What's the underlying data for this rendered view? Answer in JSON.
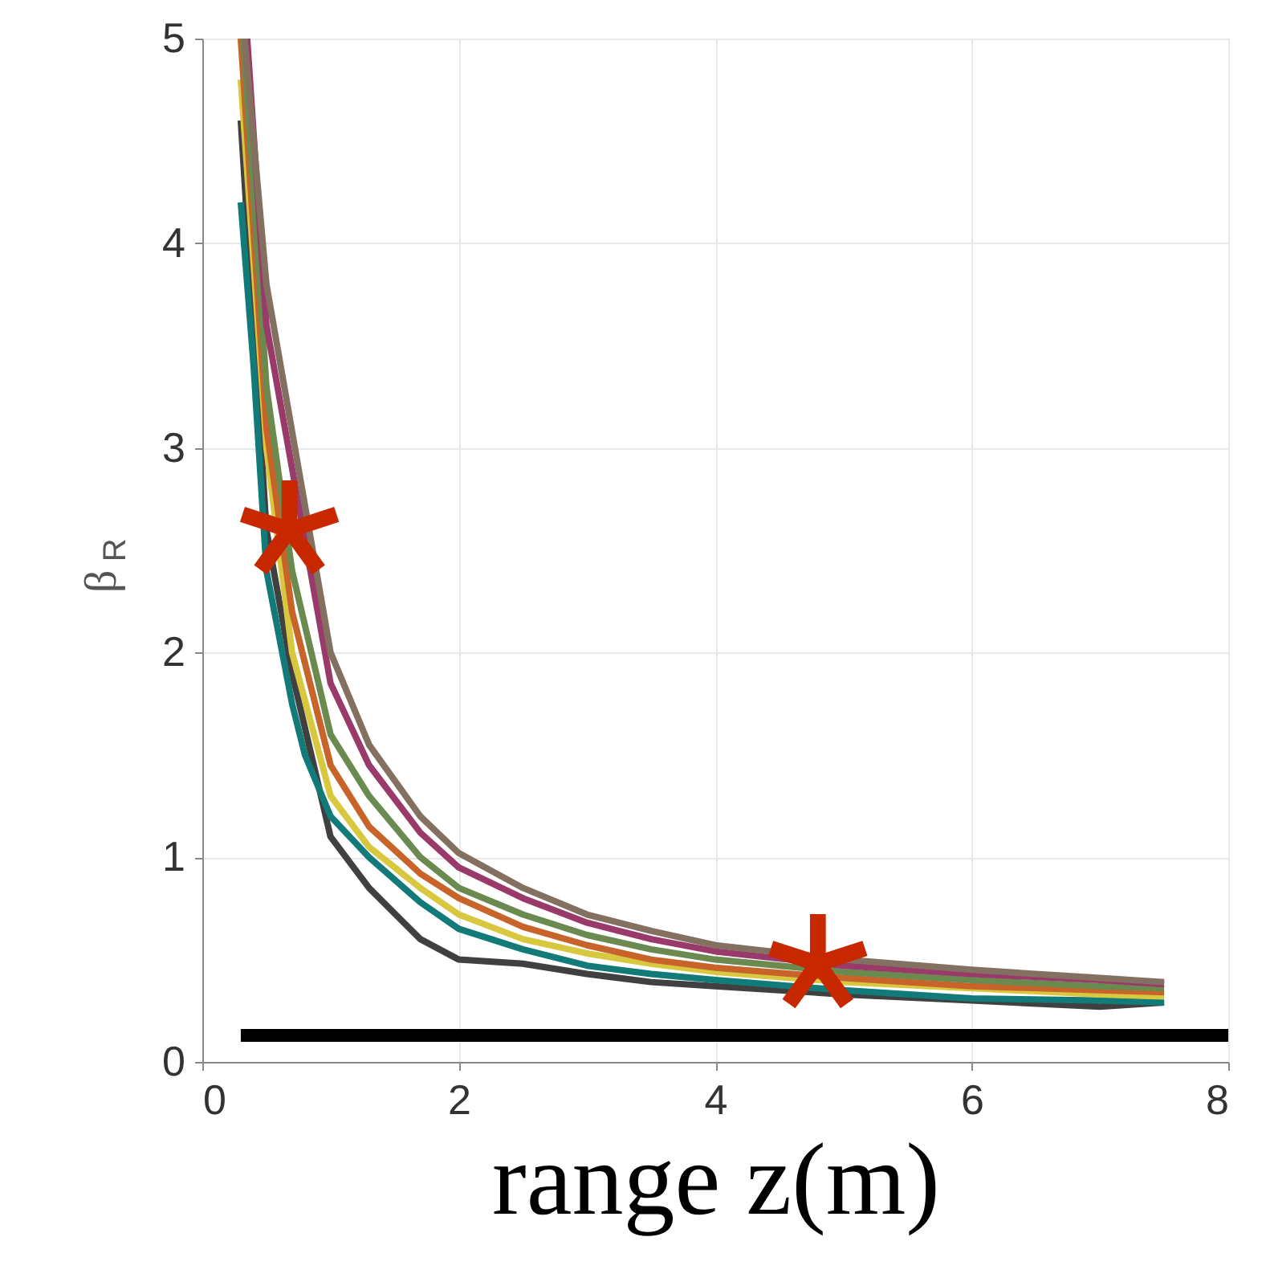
{
  "chart_data": {
    "type": "line",
    "xlabel": "range z(m)",
    "ylabel": "β$_{R}$",
    "xlim": [
      0,
      8
    ],
    "ylim": [
      0,
      5
    ],
    "xticks": [
      0,
      2,
      4,
      6,
      8
    ],
    "yticks": [
      0,
      1,
      2,
      3,
      4,
      5
    ],
    "grid": true,
    "line_style": "solid",
    "marker": "none",
    "series": [
      {
        "color": "#404040",
        "x": [
          0.3,
          0.5,
          0.7,
          1.0,
          1.3,
          1.7,
          2.0,
          2.5,
          3.0,
          3.5,
          4.0,
          5.0,
          6.0,
          7.0,
          7.5
        ],
        "values": [
          4.6,
          2.6,
          1.9,
          1.1,
          0.85,
          0.6,
          0.5,
          0.48,
          0.43,
          0.39,
          0.37,
          0.33,
          0.3,
          0.27,
          0.29
        ]
      },
      {
        "color": "#127a78",
        "x": [
          0.3,
          0.4,
          0.5,
          0.7,
          0.8,
          1.0,
          1.3,
          1.7,
          2.0,
          2.5,
          3.0,
          3.5,
          4.0,
          5.0,
          6.0,
          7.0,
          7.5
        ],
        "values": [
          4.2,
          3.4,
          2.4,
          1.75,
          1.5,
          1.2,
          1.0,
          0.78,
          0.65,
          0.55,
          0.47,
          0.43,
          0.4,
          0.35,
          0.31,
          0.3,
          0.29
        ]
      },
      {
        "color": "#d8c840",
        "x": [
          0.3,
          0.5,
          0.7,
          1.0,
          1.3,
          1.7,
          2.0,
          2.5,
          3.0,
          3.5,
          4.0,
          5.0,
          6.0,
          7.0,
          7.5
        ],
        "values": [
          4.8,
          3.0,
          2.0,
          1.3,
          1.05,
          0.85,
          0.72,
          0.6,
          0.53,
          0.48,
          0.44,
          0.39,
          0.36,
          0.33,
          0.32
        ]
      },
      {
        "color": "#c8642a",
        "x": [
          0.3,
          0.5,
          0.7,
          1.0,
          1.3,
          1.7,
          2.0,
          2.5,
          3.0,
          3.5,
          4.0,
          5.0,
          6.0,
          7.0,
          7.5
        ],
        "values": [
          5.0,
          3.1,
          2.2,
          1.45,
          1.15,
          0.92,
          0.8,
          0.66,
          0.57,
          0.5,
          0.46,
          0.41,
          0.37,
          0.35,
          0.34
        ]
      },
      {
        "color": "#6a8a50",
        "x": [
          0.32,
          0.5,
          0.7,
          1.0,
          1.3,
          1.7,
          2.0,
          2.5,
          3.0,
          3.5,
          4.0,
          5.0,
          6.0,
          7.0,
          7.5
        ],
        "values": [
          5.0,
          3.3,
          2.4,
          1.6,
          1.3,
          1.0,
          0.85,
          0.72,
          0.62,
          0.55,
          0.5,
          0.44,
          0.4,
          0.37,
          0.36
        ]
      },
      {
        "color": "#9a3a6a",
        "x": [
          0.35,
          0.5,
          1.0,
          1.3,
          1.7,
          2.0,
          2.5,
          3.0,
          3.5,
          4.0,
          5.0,
          6.0,
          7.0,
          7.5
        ],
        "values": [
          5.0,
          3.6,
          1.85,
          1.45,
          1.12,
          0.95,
          0.8,
          0.68,
          0.6,
          0.54,
          0.47,
          0.43,
          0.4,
          0.38
        ]
      },
      {
        "color": "#847060",
        "x": [
          0.33,
          0.5,
          1.0,
          1.3,
          1.7,
          2.0,
          2.5,
          3.0,
          3.5,
          4.0,
          5.0,
          6.0,
          7.0,
          7.5
        ],
        "values": [
          5.0,
          3.8,
          2.0,
          1.55,
          1.2,
          1.02,
          0.85,
          0.72,
          0.64,
          0.57,
          0.5,
          0.45,
          0.41,
          0.39
        ]
      },
      {
        "color": "#000000",
        "x": [
          0.3,
          8
        ],
        "values": [
          0.13,
          0.13
        ]
      },
      {
        "type": "scatter",
        "marker": "star",
        "color": "#c82800",
        "x": [
          0.68,
          4.8
        ],
        "values": [
          2.6,
          0.48
        ]
      }
    ]
  }
}
